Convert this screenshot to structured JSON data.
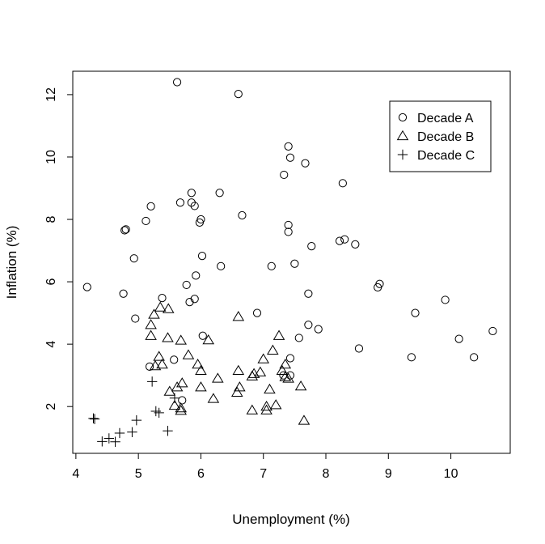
{
  "chart_data": {
    "type": "scatter",
    "xlabel": "Unemployment (%)",
    "ylabel": "Inflation (%)",
    "xlim": [
      3.95,
      10.95
    ],
    "ylim": [
      0.5,
      12.75
    ],
    "xticks": [
      4,
      5,
      6,
      7,
      8,
      9,
      10
    ],
    "yticks": [
      2,
      4,
      6,
      8,
      10,
      12
    ],
    "grid": false,
    "legend_position": "top-right",
    "series": [
      {
        "name": "Decade A",
        "marker": "circle",
        "points": [
          [
            5.62,
            12.4
          ],
          [
            6.6,
            12.02
          ],
          [
            7.4,
            10.34
          ],
          [
            7.43,
            9.98
          ],
          [
            7.67,
            9.8
          ],
          [
            7.33,
            9.43
          ],
          [
            8.27,
            9.16
          ],
          [
            5.85,
            8.85
          ],
          [
            6.3,
            8.85
          ],
          [
            5.67,
            8.54
          ],
          [
            5.85,
            8.54
          ],
          [
            5.9,
            8.43
          ],
          [
            5.2,
            8.42
          ],
          [
            6.66,
            8.13
          ],
          [
            6.0,
            8.0
          ],
          [
            5.98,
            7.9
          ],
          [
            5.12,
            7.95
          ],
          [
            7.4,
            7.82
          ],
          [
            4.78,
            7.65
          ],
          [
            4.8,
            7.68
          ],
          [
            7.4,
            7.6
          ],
          [
            8.3,
            7.36
          ],
          [
            8.22,
            7.31
          ],
          [
            8.47,
            7.2
          ],
          [
            7.77,
            7.14
          ],
          [
            4.93,
            6.75
          ],
          [
            6.02,
            6.83
          ],
          [
            6.32,
            6.5
          ],
          [
            7.13,
            6.5
          ],
          [
            7.5,
            6.58
          ],
          [
            5.92,
            6.2
          ],
          [
            5.77,
            5.9
          ],
          [
            4.18,
            5.83
          ],
          [
            8.86,
            5.93
          ],
          [
            8.83,
            5.82
          ],
          [
            4.76,
            5.62
          ],
          [
            7.72,
            5.62
          ],
          [
            5.9,
            5.45
          ],
          [
            9.91,
            5.42
          ],
          [
            5.38,
            5.48
          ],
          [
            5.82,
            5.35
          ],
          [
            6.9,
            5.0
          ],
          [
            9.43,
            5.0
          ],
          [
            4.95,
            4.82
          ],
          [
            7.72,
            4.62
          ],
          [
            7.88,
            4.48
          ],
          [
            10.67,
            4.42
          ],
          [
            6.03,
            4.27
          ],
          [
            7.57,
            4.2
          ],
          [
            10.13,
            4.17
          ],
          [
            8.53,
            3.86
          ],
          [
            7.43,
            3.55
          ],
          [
            9.37,
            3.58
          ],
          [
            10.37,
            3.58
          ],
          [
            5.18,
            3.28
          ],
          [
            5.57,
            3.5
          ],
          [
            7.32,
            3.0
          ],
          [
            7.43,
            3.0
          ],
          [
            5.7,
            2.2
          ]
        ]
      },
      {
        "name": "Decade B",
        "marker": "triangle",
        "points": [
          [
            5.25,
            4.95
          ],
          [
            5.35,
            5.18
          ],
          [
            5.48,
            5.13
          ],
          [
            6.6,
            4.88
          ],
          [
            5.2,
            4.62
          ],
          [
            5.2,
            4.27
          ],
          [
            5.47,
            4.2
          ],
          [
            5.68,
            4.12
          ],
          [
            6.12,
            4.13
          ],
          [
            7.25,
            4.27
          ],
          [
            7.15,
            3.8
          ],
          [
            5.8,
            3.65
          ],
          [
            5.33,
            3.6
          ],
          [
            5.38,
            3.35
          ],
          [
            5.27,
            3.3
          ],
          [
            5.95,
            3.35
          ],
          [
            7.0,
            3.52
          ],
          [
            7.35,
            3.35
          ],
          [
            6.0,
            3.15
          ],
          [
            6.6,
            3.15
          ],
          [
            6.95,
            3.1
          ],
          [
            6.85,
            3.05
          ],
          [
            6.82,
            2.97
          ],
          [
            7.3,
            3.15
          ],
          [
            7.35,
            2.95
          ],
          [
            7.4,
            2.9
          ],
          [
            6.27,
            2.9
          ],
          [
            6.62,
            2.62
          ],
          [
            5.7,
            2.75
          ],
          [
            5.62,
            2.62
          ],
          [
            6.0,
            2.62
          ],
          [
            7.1,
            2.55
          ],
          [
            7.6,
            2.65
          ],
          [
            5.5,
            2.48
          ],
          [
            6.58,
            2.45
          ],
          [
            6.2,
            2.25
          ],
          [
            7.2,
            2.05
          ],
          [
            5.58,
            2.03
          ],
          [
            5.68,
            1.95
          ],
          [
            6.82,
            1.88
          ],
          [
            7.05,
            1.88
          ],
          [
            7.05,
            2.0
          ],
          [
            5.68,
            1.87
          ],
          [
            7.65,
            1.55
          ]
        ]
      },
      {
        "name": "Decade C",
        "marker": "plus",
        "points": [
          [
            4.28,
            1.62
          ],
          [
            4.3,
            1.6
          ],
          [
            5.22,
            2.8
          ],
          [
            5.58,
            2.27
          ],
          [
            5.28,
            1.85
          ],
          [
            5.33,
            1.8
          ],
          [
            4.97,
            1.56
          ],
          [
            4.9,
            1.18
          ],
          [
            4.7,
            1.15
          ],
          [
            5.47,
            1.22
          ],
          [
            4.53,
            0.98
          ],
          [
            4.42,
            0.88
          ],
          [
            4.63,
            0.87
          ]
        ]
      }
    ]
  }
}
